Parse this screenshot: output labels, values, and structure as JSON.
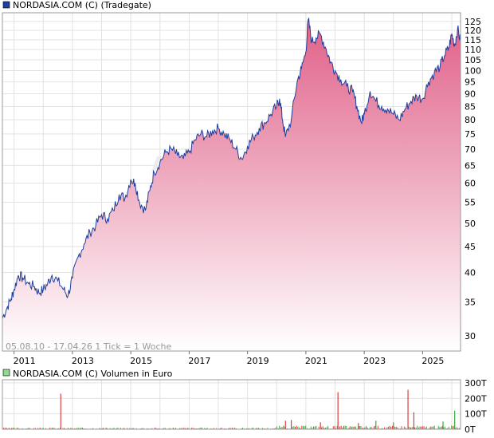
{
  "chart_data": [
    {
      "type": "area",
      "title": "NORDASIA.COM (C) (Tradegate)",
      "scale": "log",
      "grid": true,
      "y_ticks": [
        30,
        35,
        40,
        45,
        50,
        55,
        60,
        65,
        70,
        75,
        80,
        85,
        90,
        95,
        100,
        105,
        110,
        115,
        120,
        125
      ],
      "x_tick_labels": [
        "2011",
        "2013",
        "2015",
        "2017",
        "2019",
        "2021",
        "2023",
        "2025"
      ],
      "x_tick_years": [
        2011,
        2013,
        2015,
        2017,
        2019,
        2021,
        2023,
        2025
      ],
      "ylim": [
        28,
        130
      ],
      "xlim": [
        2010.6,
        2026.3
      ],
      "footer": "05.08.10 - 17.04.26   1 Tick = 1 Woche",
      "watermark": "A",
      "line_color": "#1f3f9e",
      "fill_top_color": "#e06088",
      "fill_bottom_color": "#ffffff",
      "series": [
        {
          "x": [
            2010.6,
            2010.75,
            2010.9,
            2011.0,
            2011.15,
            2011.3,
            2011.5,
            2011.7,
            2011.85,
            2012.0,
            2012.15,
            2012.3,
            2012.5,
            2012.7,
            2012.85,
            2013.0,
            2013.2,
            2013.4,
            2013.6,
            2013.8,
            2014.0,
            2014.2,
            2014.4,
            2014.6,
            2014.8,
            2015.0,
            2015.15,
            2015.3,
            2015.5,
            2015.65,
            2015.8,
            2016.0,
            2016.2,
            2016.4,
            2016.6,
            2016.8,
            2017.0,
            2017.2,
            2017.4,
            2017.6,
            2017.8,
            2018.0,
            2018.2,
            2018.4,
            2018.6,
            2018.8,
            2019.0,
            2019.2,
            2019.4,
            2019.6,
            2019.8,
            2020.0,
            2020.1,
            2020.2,
            2020.3,
            2020.5,
            2020.7,
            2020.85,
            2021.0,
            2021.08,
            2021.2,
            2021.35,
            2021.5,
            2021.7,
            2021.85,
            2022.0,
            2022.2,
            2022.4,
            2022.6,
            2022.75,
            2022.9,
            2023.0,
            2023.2,
            2023.4,
            2023.6,
            2023.8,
            2024.0,
            2024.2,
            2024.4,
            2024.6,
            2024.8,
            2025.0,
            2025.2,
            2025.4,
            2025.6,
            2025.75,
            2025.9,
            2026.0,
            2026.1,
            2026.2,
            2026.3
          ],
          "values": [
            32.5,
            34,
            35.5,
            37,
            39.5,
            39,
            38,
            37.5,
            36.5,
            37,
            38,
            39.5,
            38.5,
            37,
            36,
            39,
            43,
            45.5,
            48,
            49.5,
            52,
            51,
            53,
            57,
            56,
            61,
            60,
            55,
            53,
            58,
            63,
            66,
            69,
            70,
            68,
            67,
            69,
            73,
            75,
            74,
            76,
            77,
            75,
            73,
            70,
            67,
            71,
            74,
            77,
            79,
            82,
            85,
            88,
            80,
            74,
            80,
            95,
            101,
            109,
            126,
            114,
            116,
            118,
            110,
            104,
            100,
            96,
            93,
            91,
            85,
            79,
            82,
            91,
            87,
            85,
            84,
            82,
            80,
            84,
            87,
            89,
            88,
            95,
            99,
            102,
            107,
            111,
            118,
            112,
            121,
            114
          ]
        }
      ]
    },
    {
      "type": "bar",
      "title": "NORDASIA.COM (C) Volumen in Euro",
      "y_ticks": [
        0,
        100,
        200,
        300
      ],
      "y_tick_labels": [
        "0T",
        "100T",
        "200T",
        "300T"
      ],
      "ylim": [
        0,
        320
      ],
      "xlim": [
        2010.6,
        2026.3
      ],
      "up_color": "#3aa83a",
      "down_color": "#d94040",
      "baseline_level": 6,
      "spikes": [
        {
          "x": 2012.6,
          "value": 230,
          "color": "red"
        },
        {
          "x": 2020.3,
          "value": 55,
          "color": "red"
        },
        {
          "x": 2020.5,
          "value": 60,
          "color": "red"
        },
        {
          "x": 2021.5,
          "value": 45,
          "color": "red"
        },
        {
          "x": 2022.1,
          "value": 240,
          "color": "red"
        },
        {
          "x": 2022.8,
          "value": 40,
          "color": "red"
        },
        {
          "x": 2023.4,
          "value": 55,
          "color": "green"
        },
        {
          "x": 2024.0,
          "value": 45,
          "color": "green"
        },
        {
          "x": 2024.5,
          "value": 255,
          "color": "red"
        },
        {
          "x": 2024.7,
          "value": 110,
          "color": "red"
        },
        {
          "x": 2025.7,
          "value": 50,
          "color": "green"
        },
        {
          "x": 2026.1,
          "value": 120,
          "color": "green"
        }
      ]
    }
  ]
}
